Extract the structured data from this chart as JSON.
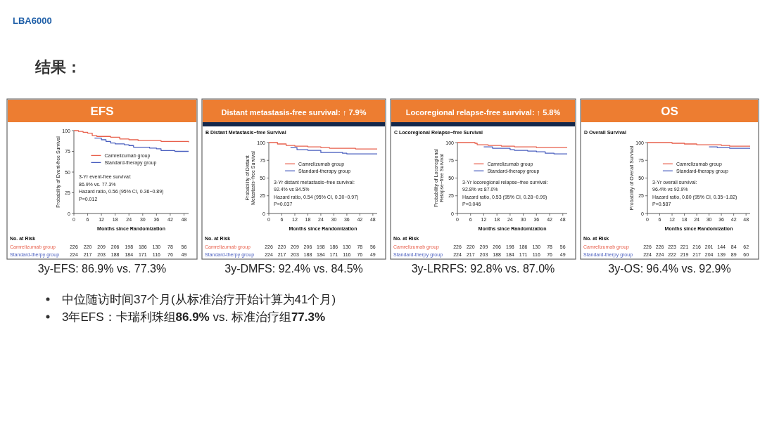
{
  "chart_data": [
    {
      "type": "other",
      "title": "结果：",
      "annotations": [
        "LBA6000",
        "中位随访时间37个月(从标准治疗开始计算为41个月)",
        "3年EFS：卡瑞利珠组**86.9%** vs. 标准治疗组**77.3%**"
      ]
    },
    {
      "type": "step",
      "title": "EFS",
      "ylabel": "Probability of Event-free Survival",
      "xlabel": "Months since Randomization",
      "xlim": [
        0,
        50
      ],
      "xticks": [
        0,
        6,
        12,
        18,
        24,
        30,
        36,
        42,
        48
      ],
      "ylim": [
        0,
        100
      ],
      "yticks": [
        0,
        25,
        50,
        75,
        100
      ],
      "legend": "center",
      "series": [
        {
          "name": "Camrelizumab group",
          "color": "#e8604c",
          "x": [
            0,
            2,
            4,
            6,
            8,
            10,
            12,
            16,
            20,
            24,
            28,
            32,
            36,
            38,
            44,
            50
          ],
          "values": [
            100,
            99,
            98,
            97,
            94,
            93,
            93,
            92,
            90,
            89,
            88,
            88,
            88,
            87,
            87,
            86
          ]
        },
        {
          "name": "Standard-therapy group",
          "color": "#4a5fbf",
          "x": [
            9,
            12,
            14,
            16,
            18,
            22,
            24,
            26,
            30,
            33,
            36,
            38,
            42,
            44,
            50
          ],
          "values": [
            91,
            89,
            87,
            85,
            84,
            83,
            82,
            80,
            80,
            79,
            78,
            76,
            76,
            75,
            75
          ]
        }
      ],
      "annotations": [
        "3-Yr event-free survival:",
        "86.9% vs. 77.3%",
        "Hazard ratio, 0.56 (95% CI, 0.36−0.89)",
        "P=0.012",
        "No. at Risk",
        "Camrelizumab group",
        "226",
        "220",
        "209",
        "206",
        "198",
        "186",
        "130",
        "78",
        "56",
        "Standard-therpy group",
        "224",
        "217",
        "203",
        "188",
        "184",
        "171",
        "116",
        "76",
        "49",
        "3y-EFS: 86.9% vs. 77.3%"
      ]
    },
    {
      "type": "step",
      "title": "Distant metastasis-free survival: ↑ 7.9%",
      "subtitle": "B   Distant Metastasis−free Survival",
      "ylabel": "Probability of Distant\nMetastasis−free Survival",
      "xlabel": "Months since Randomization",
      "xlim": [
        0,
        50
      ],
      "xticks": [
        0,
        6,
        12,
        18,
        24,
        30,
        36,
        42,
        48
      ],
      "ylim": [
        0,
        100
      ],
      "yticks": [
        0,
        25,
        50,
        75,
        100
      ],
      "legend": "center",
      "series": [
        {
          "name": "Camrelizumab group",
          "color": "#e8604c",
          "x": [
            0,
            4,
            8,
            12,
            18,
            24,
            28,
            36,
            40,
            50
          ],
          "values": [
            100,
            98,
            96,
            95,
            94,
            93,
            92,
            92,
            91,
            91
          ]
        },
        {
          "name": "Standard-therapy group",
          "color": "#4a5fbf",
          "x": [
            10,
            13,
            18,
            24,
            30,
            34,
            36,
            50
          ],
          "values": [
            93,
            90,
            89,
            86,
            86,
            85,
            84,
            84
          ]
        }
      ],
      "annotations": [
        "3-Yr distant metastasis−free survival:",
        "92.4% vs 84.5%",
        "Hazard ratio, 0.54 (95% CI, 0.30−0.97)",
        "P=0.037",
        "No. at Risk",
        "Camrelizumab group",
        "226",
        "220",
        "209",
        "206",
        "198",
        "186",
        "130",
        "78",
        "56",
        "Standard-therpy group",
        "224",
        "217",
        "203",
        "188",
        "184",
        "171",
        "116",
        "76",
        "49",
        "3y-DMFS: 92.4% vs. 84.5%"
      ]
    },
    {
      "type": "step",
      "title": "Locoregional relapse-free survival: ↑ 5.8%",
      "subtitle": "C   Locoregional Relapse−free Survival",
      "ylabel": "Probability of Locoregional\nRelapse−free Survival",
      "xlabel": "Months since Randomization",
      "xlim": [
        0,
        50
      ],
      "xticks": [
        0,
        6,
        12,
        18,
        24,
        30,
        36,
        42,
        48
      ],
      "ylim": [
        0,
        100
      ],
      "yticks": [
        0,
        25,
        50,
        75,
        100
      ],
      "legend": "center",
      "series": [
        {
          "name": "Camrelizumab group",
          "color": "#e8604c",
          "x": [
            0,
            8,
            9,
            14,
            20,
            26,
            32,
            36,
            50
          ],
          "values": [
            100,
            99,
            97,
            96,
            95,
            94,
            94,
            93,
            93
          ]
        },
        {
          "name": "Standard-therapy group",
          "color": "#4a5fbf",
          "x": [
            12,
            16,
            24,
            26,
            32,
            36,
            40,
            44,
            50
          ],
          "values": [
            94,
            92,
            90,
            89,
            88,
            87,
            85,
            84,
            84
          ]
        }
      ],
      "annotations": [
        "3-Yr locoregional relapse−free survival:",
        "92.8% vs 87.0%",
        "Hazard ratio, 0.53 (95% CI, 0.28−0.99)",
        "P=0.046",
        "No. at Risk",
        "Camrelizumab group",
        "226",
        "220",
        "209",
        "206",
        "198",
        "186",
        "130",
        "78",
        "56",
        "Standard-therpy group",
        "224",
        "217",
        "203",
        "188",
        "184",
        "171",
        "116",
        "76",
        "49",
        "3y-LRRFS: 92.8% vs. 87.0%"
      ]
    },
    {
      "type": "step",
      "title": "OS",
      "subtitle": "D   Overall Survival",
      "ylabel": "Probability of Overall Survival",
      "xlabel": "Months since Randomization",
      "xlim": [
        0,
        50
      ],
      "xticks": [
        0,
        6,
        12,
        18,
        24,
        30,
        36,
        42,
        48
      ],
      "ylim": [
        0,
        100
      ],
      "yticks": [
        0,
        25,
        50,
        75,
        100
      ],
      "legend": "center",
      "series": [
        {
          "name": "Camrelizumab group",
          "color": "#e8604c",
          "x": [
            0,
            12,
            18,
            24,
            36,
            40,
            50
          ],
          "values": [
            100,
            99,
            98,
            97,
            96,
            95,
            95
          ]
        },
        {
          "name": "Standard-therapy group",
          "color": "#4a5fbf",
          "x": [
            30,
            34,
            40,
            50
          ],
          "values": [
            94,
            93,
            92,
            92
          ]
        }
      ],
      "annotations": [
        "3-Yr overall survival:",
        "96.4% vs 92.9%",
        "Hazard ratio, 0.80 (95% CI, 0.35−1.82)",
        "P=0.587",
        "No. at Risk",
        "Camrelizumab group",
        "226",
        "226",
        "223",
        "221",
        "216",
        "201",
        "144",
        "84",
        "62",
        "Standard-therpy group",
        "224",
        "224",
        "222",
        "219",
        "217",
        "204",
        "139",
        "89",
        "60",
        "3y-OS: 96.4% vs. 92.9%"
      ]
    }
  ]
}
